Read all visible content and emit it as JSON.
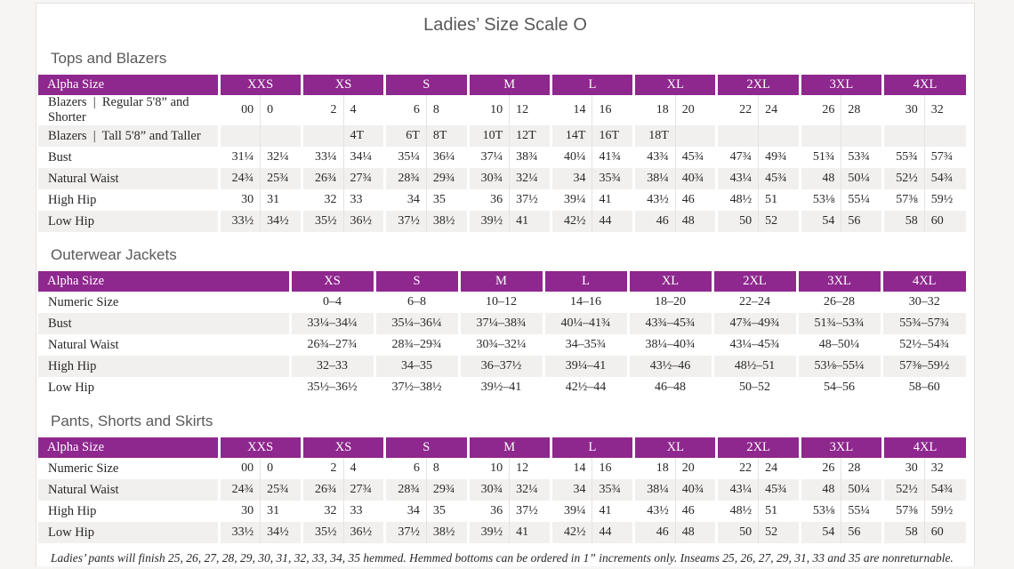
{
  "page_title": "Ladies’ Size Scale O",
  "footnote": "Ladies’ pants will finish 25, 26, 27, 28, 29, 30, 31, 32, 33, 34, 35 hemmed. Hemmed bottoms can be ordered in 1” increments only. Inseams 25, 26, 27, 29, 31, 33 and 35 are nonreturnable.",
  "colors": {
    "header_purple": "#8e278e",
    "stripe": "#f1f0ee",
    "title_gray": "#57585a",
    "heading_gray": "#595a5c",
    "body_text": "#282828",
    "canvas_bg": "#f7f5f4"
  },
  "tables": [
    {
      "section_title": "Tops and Blazers",
      "label_header": "Alpha Size",
      "split_columns": true,
      "label_col_width": 203,
      "columns": [
        "XXS",
        "XS",
        "S",
        "M",
        "L",
        "XL",
        "2XL",
        "3XL",
        "4XL"
      ],
      "rows": [
        {
          "label": "Blazers  |  Regular 5'8” and Shorter",
          "cells": [
            [
              "00",
              "0"
            ],
            [
              "2",
              "4"
            ],
            [
              "6",
              "8"
            ],
            [
              "10",
              "12"
            ],
            [
              "14",
              "16"
            ],
            [
              "18",
              "20"
            ],
            [
              "22",
              "24"
            ],
            [
              "26",
              "28"
            ],
            [
              "30",
              "32"
            ]
          ]
        },
        {
          "label": "Blazers  |  Tall 5'8” and Taller",
          "cells": [
            [
              "",
              ""
            ],
            [
              "",
              "4T"
            ],
            [
              "6T",
              "8T"
            ],
            [
              "10T",
              "12T"
            ],
            [
              "14T",
              "16T"
            ],
            [
              "18T",
              ""
            ],
            [
              "",
              ""
            ],
            [
              "",
              ""
            ],
            [
              "",
              ""
            ]
          ]
        },
        {
          "label": "Bust",
          "cells": [
            [
              "31¼",
              "32¼"
            ],
            [
              "33¼",
              "34¼"
            ],
            [
              "35¼",
              "36¼"
            ],
            [
              "37¼",
              "38¾"
            ],
            [
              "40¼",
              "41¾"
            ],
            [
              "43¾",
              "45¾"
            ],
            [
              "47¾",
              "49¾"
            ],
            [
              "51¾",
              "53¾"
            ],
            [
              "55¾",
              "57¾"
            ]
          ]
        },
        {
          "label": "Natural Waist",
          "cells": [
            [
              "24¾",
              "25¾"
            ],
            [
              "26¾",
              "27¾"
            ],
            [
              "28¾",
              "29¾"
            ],
            [
              "30¾",
              "32¼"
            ],
            [
              "34",
              "35¾"
            ],
            [
              "38¼",
              "40¾"
            ],
            [
              "43¼",
              "45¾"
            ],
            [
              "48",
              "50¼"
            ],
            [
              "52½",
              "54¾"
            ]
          ]
        },
        {
          "label": "High Hip",
          "cells": [
            [
              "30",
              "31"
            ],
            [
              "32",
              "33"
            ],
            [
              "34",
              "35"
            ],
            [
              "36",
              "37½"
            ],
            [
              "39¼",
              "41"
            ],
            [
              "43½",
              "46"
            ],
            [
              "48½",
              "51"
            ],
            [
              "53⅛",
              "55¼"
            ],
            [
              "57⅜",
              "59½"
            ]
          ]
        },
        {
          "label": "Low Hip",
          "cells": [
            [
              "33½",
              "34½"
            ],
            [
              "35½",
              "36½"
            ],
            [
              "37½",
              "38½"
            ],
            [
              "39½",
              "41"
            ],
            [
              "42½",
              "44"
            ],
            [
              "46",
              "48"
            ],
            [
              "50",
              "52"
            ],
            [
              "54",
              "56"
            ],
            [
              "58",
              "60"
            ]
          ]
        }
      ]
    },
    {
      "section_title": "Outerwear Jackets",
      "label_header": "Alpha Size",
      "split_columns": false,
      "label_col_width": 283,
      "columns": [
        "XS",
        "S",
        "M",
        "L",
        "XL",
        "2XL",
        "3XL",
        "4XL"
      ],
      "rows": [
        {
          "label": "Numeric Size",
          "cells": [
            "0–4",
            "6–8",
            "10–12",
            "14–16",
            "18–20",
            "22–24",
            "26–28",
            "30–32"
          ]
        },
        {
          "label": "Bust",
          "cells": [
            "33¼–34¼",
            "35¼–36¼",
            "37¼–38¾",
            "40¼–41¾",
            "43¾–45¾",
            "47¾–49¾",
            "51¾–53¾",
            "55¾–57¾"
          ]
        },
        {
          "label": "Natural Waist",
          "cells": [
            "26¾–27¾",
            "28¾–29¾",
            "30¾–32¼",
            "34–35¾",
            "38¼–40¾",
            "43¼–45¾",
            "48–50¼",
            "52½–54¾"
          ]
        },
        {
          "label": "High Hip",
          "cells": [
            "32–33",
            "34–35",
            "36–37½",
            "39¼–41",
            "43½–46",
            "48½–51",
            "53⅛–55¼",
            "57⅜–59½"
          ]
        },
        {
          "label": "Low Hip",
          "cells": [
            "35½–36½",
            "37½–38½",
            "39½–41",
            "42½–44",
            "46–48",
            "50–52",
            "54–56",
            "58–60"
          ]
        }
      ]
    },
    {
      "section_title": "Pants, Shorts and Skirts",
      "label_header": "Alpha Size",
      "split_columns": true,
      "label_col_width": 203,
      "columns": [
        "XXS",
        "XS",
        "S",
        "M",
        "L",
        "XL",
        "2XL",
        "3XL",
        "4XL"
      ],
      "rows": [
        {
          "label": "Numeric Size",
          "cells": [
            [
              "00",
              "0"
            ],
            [
              "2",
              "4"
            ],
            [
              "6",
              "8"
            ],
            [
              "10",
              "12"
            ],
            [
              "14",
              "16"
            ],
            [
              "18",
              "20"
            ],
            [
              "22",
              "24"
            ],
            [
              "26",
              "28"
            ],
            [
              "30",
              "32"
            ]
          ]
        },
        {
          "label": "Natural Waist",
          "cells": [
            [
              "24¾",
              "25¾"
            ],
            [
              "26¾",
              "27¾"
            ],
            [
              "28¾",
              "29¾"
            ],
            [
              "30¾",
              "32¼"
            ],
            [
              "34",
              "35¾"
            ],
            [
              "38¼",
              "40¾"
            ],
            [
              "43¼",
              "45¾"
            ],
            [
              "48",
              "50¼"
            ],
            [
              "52½",
              "54¾"
            ]
          ]
        },
        {
          "label": "High Hip",
          "cells": [
            [
              "30",
              "31"
            ],
            [
              "32",
              "33"
            ],
            [
              "34",
              "35"
            ],
            [
              "36",
              "37½"
            ],
            [
              "39¼",
              "41"
            ],
            [
              "43½",
              "46"
            ],
            [
              "48½",
              "51"
            ],
            [
              "53⅛",
              "55¼"
            ],
            [
              "57⅜",
              "59½"
            ]
          ]
        },
        {
          "label": "Low Hip",
          "cells": [
            [
              "33½",
              "34½"
            ],
            [
              "35½",
              "36½"
            ],
            [
              "37½",
              "38½"
            ],
            [
              "39½",
              "41"
            ],
            [
              "42½",
              "44"
            ],
            [
              "46",
              "48"
            ],
            [
              "50",
              "52"
            ],
            [
              "54",
              "56"
            ],
            [
              "58",
              "60"
            ]
          ]
        }
      ]
    }
  ]
}
